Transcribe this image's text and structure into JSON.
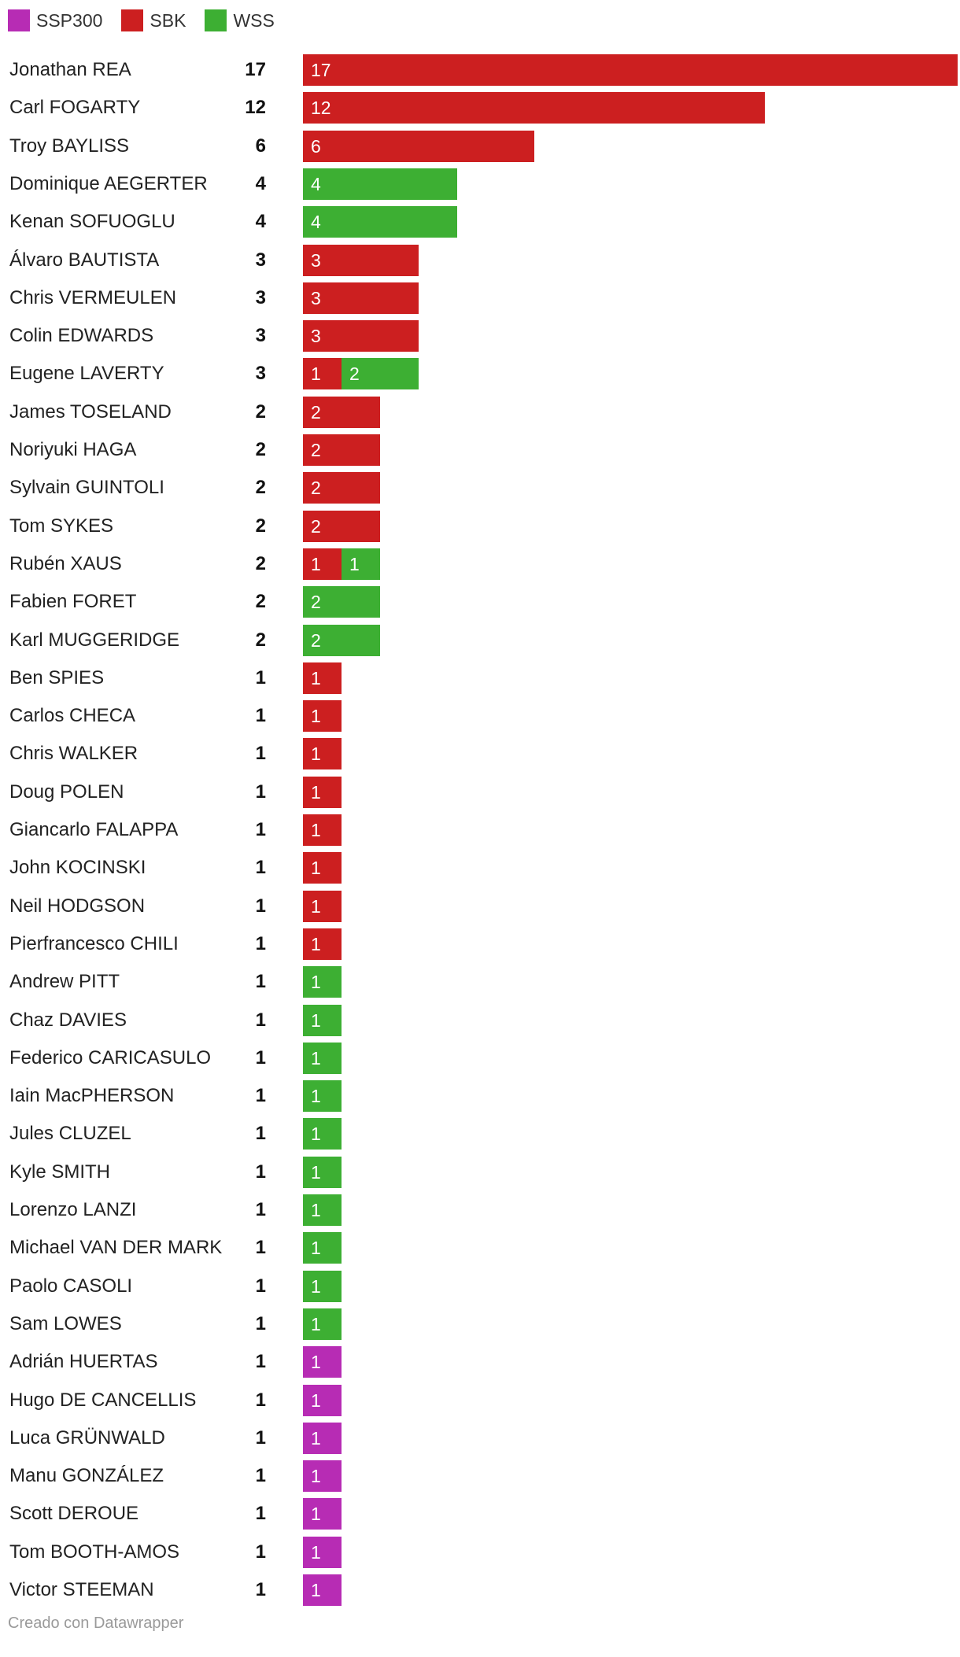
{
  "colors": {
    "SSP300": "#b72cb4",
    "SBK": "#cc1f20",
    "WSS": "#3daf33"
  },
  "chart_data": {
    "type": "bar",
    "orientation": "horizontal",
    "stacked": true,
    "legend": [
      "SSP300",
      "SBK",
      "WSS"
    ],
    "legend_position": "top-left",
    "xlim": [
      0,
      17
    ],
    "rows": [
      {
        "name": "Jonathan REA",
        "total": "17",
        "segments": [
          {
            "series": "SBK",
            "value": 17,
            "label": "17"
          }
        ]
      },
      {
        "name": "Carl FOGARTY",
        "total": "12",
        "segments": [
          {
            "series": "SBK",
            "value": 12,
            "label": "12"
          }
        ]
      },
      {
        "name": "Troy BAYLISS",
        "total": "6",
        "segments": [
          {
            "series": "SBK",
            "value": 6,
            "label": "6"
          }
        ]
      },
      {
        "name": "Dominique AEGERTER",
        "total": "4",
        "segments": [
          {
            "series": "WSS",
            "value": 4,
            "label": "4"
          }
        ]
      },
      {
        "name": "Kenan SOFUOGLU",
        "total": "4",
        "segments": [
          {
            "series": "WSS",
            "value": 4,
            "label": "4"
          }
        ]
      },
      {
        "name": "Álvaro BAUTISTA",
        "total": "3",
        "segments": [
          {
            "series": "SBK",
            "value": 3,
            "label": "3"
          }
        ]
      },
      {
        "name": "Chris VERMEULEN",
        "total": "3",
        "segments": [
          {
            "series": "SBK",
            "value": 3,
            "label": "3"
          }
        ]
      },
      {
        "name": "Colin EDWARDS",
        "total": "3",
        "segments": [
          {
            "series": "SBK",
            "value": 3,
            "label": "3"
          }
        ]
      },
      {
        "name": "Eugene LAVERTY",
        "total": "3",
        "segments": [
          {
            "series": "SBK",
            "value": 1,
            "label": "1"
          },
          {
            "series": "WSS",
            "value": 2,
            "label": "2"
          }
        ]
      },
      {
        "name": "James TOSELAND",
        "total": "2",
        "segments": [
          {
            "series": "SBK",
            "value": 2,
            "label": "2"
          }
        ]
      },
      {
        "name": "Noriyuki HAGA",
        "total": "2",
        "segments": [
          {
            "series": "SBK",
            "value": 2,
            "label": "2"
          }
        ]
      },
      {
        "name": "Sylvain GUINTOLI",
        "total": "2",
        "segments": [
          {
            "series": "SBK",
            "value": 2,
            "label": "2"
          }
        ]
      },
      {
        "name": "Tom SYKES",
        "total": "2",
        "segments": [
          {
            "series": "SBK",
            "value": 2,
            "label": "2"
          }
        ]
      },
      {
        "name": "Rubén XAUS",
        "total": "2",
        "segments": [
          {
            "series": "SBK",
            "value": 1,
            "label": "1"
          },
          {
            "series": "WSS",
            "value": 1,
            "label": "1"
          }
        ]
      },
      {
        "name": "Fabien FORET",
        "total": "2",
        "segments": [
          {
            "series": "WSS",
            "value": 2,
            "label": "2"
          }
        ]
      },
      {
        "name": "Karl MUGGERIDGE",
        "total": "2",
        "segments": [
          {
            "series": "WSS",
            "value": 2,
            "label": "2"
          }
        ]
      },
      {
        "name": "Ben SPIES",
        "total": "1",
        "segments": [
          {
            "series": "SBK",
            "value": 1,
            "label": "1"
          }
        ]
      },
      {
        "name": "Carlos CHECA",
        "total": "1",
        "segments": [
          {
            "series": "SBK",
            "value": 1,
            "label": "1"
          }
        ]
      },
      {
        "name": "Chris WALKER",
        "total": "1",
        "segments": [
          {
            "series": "SBK",
            "value": 1,
            "label": "1"
          }
        ]
      },
      {
        "name": "Doug POLEN",
        "total": "1",
        "segments": [
          {
            "series": "SBK",
            "value": 1,
            "label": "1"
          }
        ]
      },
      {
        "name": "Giancarlo FALAPPA",
        "total": "1",
        "segments": [
          {
            "series": "SBK",
            "value": 1,
            "label": "1"
          }
        ]
      },
      {
        "name": "John KOCINSKI",
        "total": "1",
        "segments": [
          {
            "series": "SBK",
            "value": 1,
            "label": "1"
          }
        ]
      },
      {
        "name": "Neil HODGSON",
        "total": "1",
        "segments": [
          {
            "series": "SBK",
            "value": 1,
            "label": "1"
          }
        ]
      },
      {
        "name": "Pierfrancesco CHILI",
        "total": "1",
        "segments": [
          {
            "series": "SBK",
            "value": 1,
            "label": "1"
          }
        ]
      },
      {
        "name": "Andrew PITT",
        "total": "1",
        "segments": [
          {
            "series": "WSS",
            "value": 1,
            "label": "1"
          }
        ]
      },
      {
        "name": "Chaz DAVIES",
        "total": "1",
        "segments": [
          {
            "series": "WSS",
            "value": 1,
            "label": "1"
          }
        ]
      },
      {
        "name": "Federico CARICASULO",
        "total": "1",
        "segments": [
          {
            "series": "WSS",
            "value": 1,
            "label": "1"
          }
        ]
      },
      {
        "name": "Iain MacPHERSON",
        "total": "1",
        "segments": [
          {
            "series": "WSS",
            "value": 1,
            "label": "1"
          }
        ]
      },
      {
        "name": "Jules CLUZEL",
        "total": "1",
        "segments": [
          {
            "series": "WSS",
            "value": 1,
            "label": "1"
          }
        ]
      },
      {
        "name": "Kyle SMITH",
        "total": "1",
        "segments": [
          {
            "series": "WSS",
            "value": 1,
            "label": "1"
          }
        ]
      },
      {
        "name": "Lorenzo LANZI",
        "total": "1",
        "segments": [
          {
            "series": "WSS",
            "value": 1,
            "label": "1"
          }
        ]
      },
      {
        "name": "Michael VAN DER MARK",
        "total": "1",
        "segments": [
          {
            "series": "WSS",
            "value": 1,
            "label": "1"
          }
        ]
      },
      {
        "name": "Paolo CASOLI",
        "total": "1",
        "segments": [
          {
            "series": "WSS",
            "value": 1,
            "label": "1"
          }
        ]
      },
      {
        "name": "Sam LOWES",
        "total": "1",
        "segments": [
          {
            "series": "WSS",
            "value": 1,
            "label": "1"
          }
        ]
      },
      {
        "name": "Adrián HUERTAS",
        "total": "1",
        "segments": [
          {
            "series": "SSP300",
            "value": 1,
            "label": "1"
          }
        ]
      },
      {
        "name": "Hugo DE CANCELLIS",
        "total": "1",
        "segments": [
          {
            "series": "SSP300",
            "value": 1,
            "label": "1"
          }
        ]
      },
      {
        "name": "Luca GRÜNWALD",
        "total": "1",
        "segments": [
          {
            "series": "SSP300",
            "value": 1,
            "label": "1"
          }
        ]
      },
      {
        "name": "Manu GONZÁLEZ",
        "total": "1",
        "segments": [
          {
            "series": "SSP300",
            "value": 1,
            "label": "1"
          }
        ]
      },
      {
        "name": "Scott DEROUE",
        "total": "1",
        "segments": [
          {
            "series": "SSP300",
            "value": 1,
            "label": "1"
          }
        ]
      },
      {
        "name": "Tom BOOTH-AMOS",
        "total": "1",
        "segments": [
          {
            "series": "SSP300",
            "value": 1,
            "label": "1"
          }
        ]
      },
      {
        "name": "Victor STEEMAN",
        "total": "1",
        "segments": [
          {
            "series": "SSP300",
            "value": 1,
            "label": "1"
          }
        ]
      }
    ]
  },
  "footer": "Creado con Datawrapper"
}
